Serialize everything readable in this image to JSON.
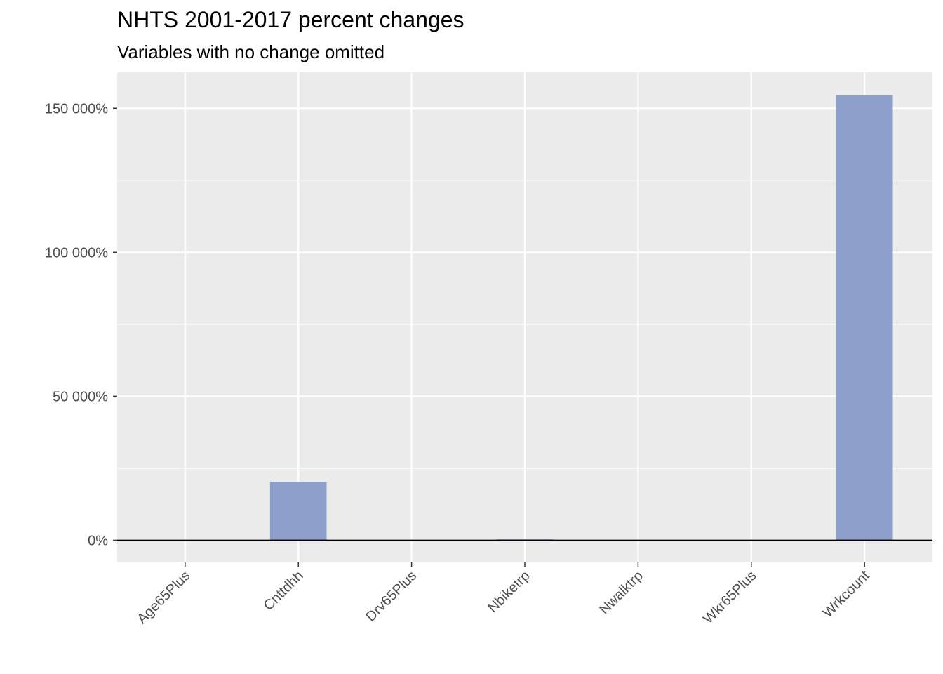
{
  "chart_data": {
    "type": "bar",
    "title": "NHTS 2001-2017 percent changes",
    "subtitle": "Variables with no change omitted",
    "xlabel": "",
    "ylabel": "",
    "categories": [
      "Age65Plus",
      "Cnttdhh",
      "Drv65Plus",
      "Nbiketrp",
      "Nwalktrp",
      "Wkr65Plus",
      "Wrkcount"
    ],
    "values": [
      0,
      20200,
      0,
      300,
      0,
      0,
      154500
    ],
    "ylim": [
      -7700,
      162500
    ],
    "yticks": [
      0,
      50000,
      100000,
      150000
    ],
    "ytick_labels": [
      "0%",
      "50 000%",
      "100 000%",
      "150 000%"
    ],
    "grid": true,
    "legend": "none",
    "colors": {
      "bar": "#8da0cb",
      "panel": "#ebebeb",
      "grid": "#ffffff",
      "zero_line": "#000000",
      "tick_text": "#4d4d4d"
    }
  }
}
